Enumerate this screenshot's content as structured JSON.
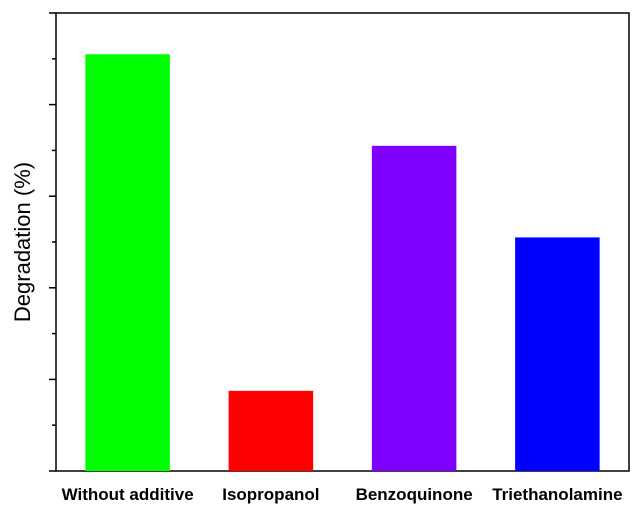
{
  "chart_data": {
    "type": "bar",
    "title": "",
    "xlabel": "",
    "ylabel": "Degradation (%)",
    "categories": [
      "Without additive",
      "Isopropanol",
      "Benzoquinone",
      "Triethanolamine"
    ],
    "values": [
      91,
      17.5,
      71,
      51
    ],
    "colors": [
      "#00ff00",
      "#ff0000",
      "#8000ff",
      "#0000ff"
    ],
    "ylim": [
      0,
      100
    ],
    "y_tick_labels_shown": false,
    "grid": false,
    "legend": "none"
  }
}
